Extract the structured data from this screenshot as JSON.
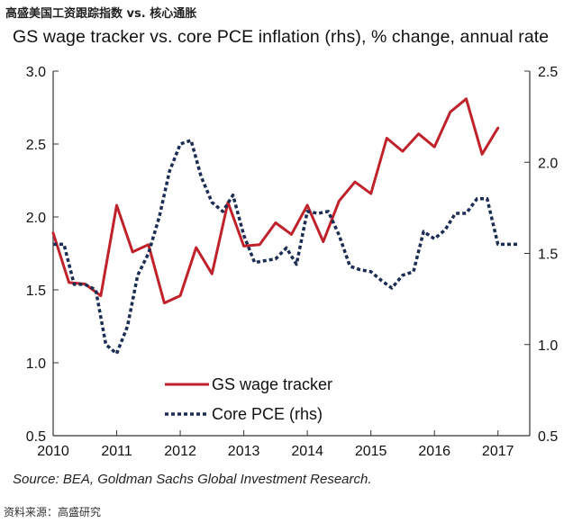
{
  "header": {
    "cn_title": "高盛美国工资跟踪指数 vs. 核心通胀",
    "source": "Source: BEA, Goldman Sachs Global Investment Research.",
    "cn_footer": "资料来源：高盛研究"
  },
  "colors": {
    "wage": "#c0222c",
    "pce": "#1b2d52",
    "axis": "#333333"
  },
  "chart_data": {
    "type": "line",
    "title": "GS wage tracker vs. core PCE inflation (rhs), % change, annual rate",
    "xlabel": "",
    "ylabel": "",
    "xlim": [
      2010,
      2017.5
    ],
    "ylim": [
      0.5,
      3.0
    ],
    "y2lim": [
      0.5,
      2.5
    ],
    "x_ticks": [
      "2010",
      "2011",
      "2012",
      "2013",
      "2014",
      "2015",
      "2016",
      "2017"
    ],
    "y_ticks": [
      "0.5",
      "1.0",
      "1.5",
      "2.0",
      "2.5",
      "3.0"
    ],
    "y2_ticks": [
      "0.5",
      "1.0",
      "1.5",
      "2.0",
      "2.5"
    ],
    "legend_position": "lower-center",
    "series": [
      {
        "name": "GS wage tracker",
        "axis": "left",
        "style": "solid",
        "x": [
          2010.0,
          2010.25,
          2010.5,
          2010.75,
          2011.0,
          2011.25,
          2011.5,
          2011.75,
          2012.0,
          2012.25,
          2012.5,
          2012.75,
          2013.0,
          2013.25,
          2013.5,
          2013.75,
          2014.0,
          2014.25,
          2014.5,
          2014.75,
          2015.0,
          2015.25,
          2015.5,
          2015.75,
          2016.0,
          2016.25,
          2016.5,
          2016.75,
          2017.0
        ],
        "values": [
          1.89,
          1.55,
          1.54,
          1.46,
          2.08,
          1.76,
          1.81,
          1.41,
          1.46,
          1.79,
          1.61,
          2.1,
          1.8,
          1.81,
          1.96,
          1.88,
          2.08,
          1.83,
          2.11,
          2.24,
          2.16,
          2.54,
          2.45,
          2.57,
          2.48,
          2.72,
          2.81,
          2.43,
          2.61
        ]
      },
      {
        "name": "Core PCE (rhs)",
        "axis": "right",
        "style": "dotted",
        "x": [
          2010.0,
          2010.17,
          2010.33,
          2010.5,
          2010.67,
          2010.83,
          2011.0,
          2011.17,
          2011.33,
          2011.5,
          2011.67,
          2011.83,
          2012.0,
          2012.17,
          2012.33,
          2012.5,
          2012.67,
          2012.83,
          2013.0,
          2013.17,
          2013.33,
          2013.5,
          2013.67,
          2013.83,
          2014.0,
          2014.17,
          2014.33,
          2014.5,
          2014.67,
          2014.83,
          2015.0,
          2015.17,
          2015.33,
          2015.5,
          2015.67,
          2015.83,
          2016.0,
          2016.17,
          2016.33,
          2016.5,
          2016.67,
          2016.83,
          2017.0,
          2017.17,
          2017.33
        ],
        "values": [
          1.55,
          1.55,
          1.33,
          1.33,
          1.3,
          1.0,
          0.95,
          1.1,
          1.38,
          1.5,
          1.7,
          1.95,
          2.1,
          2.12,
          1.92,
          1.78,
          1.73,
          1.82,
          1.6,
          1.45,
          1.46,
          1.47,
          1.53,
          1.44,
          1.73,
          1.72,
          1.73,
          1.6,
          1.43,
          1.41,
          1.4,
          1.35,
          1.31,
          1.38,
          1.4,
          1.62,
          1.58,
          1.63,
          1.72,
          1.72,
          1.8,
          1.8,
          1.55,
          1.55,
          1.55
        ]
      }
    ]
  }
}
